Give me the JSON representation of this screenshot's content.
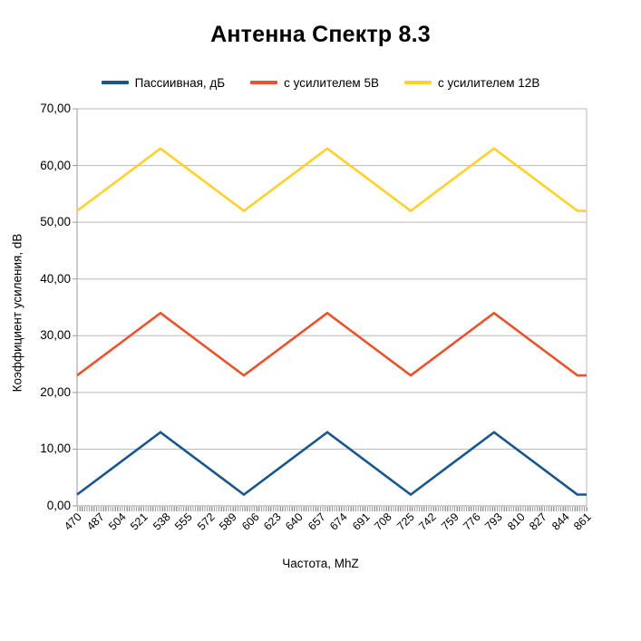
{
  "chart_data": {
    "type": "line",
    "title": "Антенна Спектр 8.3",
    "xlabel": "Частота, MhZ",
    "ylabel": "Коэффициент усиления, dB",
    "xlim": [
      470,
      861
    ],
    "ylim": [
      0,
      70
    ],
    "grid": "horizontal",
    "legend_position": "top",
    "y_tick_labels": [
      "0,00",
      "10,00",
      "20,00",
      "30,00",
      "40,00",
      "50,00",
      "60,00",
      "70,00"
    ],
    "x_tick_labels": [
      "470",
      "487",
      "504",
      "521",
      "538",
      "555",
      "572",
      "589",
      "606",
      "623",
      "640",
      "657",
      "674",
      "691",
      "708",
      "725",
      "742",
      "759",
      "776",
      "793",
      "810",
      "827",
      "844",
      "861"
    ],
    "axis_color": "#9a9a9a",
    "grid_color": "#b9b9b9",
    "series": [
      {
        "name": "Пассиивная, дБ",
        "color": "#17568F",
        "points": [
          [
            470,
            2
          ],
          [
            534,
            13
          ],
          [
            598,
            2
          ],
          [
            662,
            13
          ],
          [
            726,
            2
          ],
          [
            790,
            13
          ],
          [
            854,
            2
          ],
          [
            861,
            2
          ]
        ]
      },
      {
        "name": "с усилителем 5В",
        "color": "#E8542E",
        "points": [
          [
            470,
            23
          ],
          [
            534,
            34
          ],
          [
            598,
            23
          ],
          [
            662,
            34
          ],
          [
            726,
            23
          ],
          [
            790,
            34
          ],
          [
            854,
            23
          ],
          [
            861,
            23
          ]
        ]
      },
      {
        "name": "с усилителем 12В",
        "color": "#FFD02E",
        "points": [
          [
            470,
            52
          ],
          [
            534,
            63
          ],
          [
            598,
            52
          ],
          [
            662,
            63
          ],
          [
            726,
            52
          ],
          [
            790,
            63
          ],
          [
            854,
            52
          ],
          [
            861,
            52
          ]
        ]
      }
    ]
  }
}
